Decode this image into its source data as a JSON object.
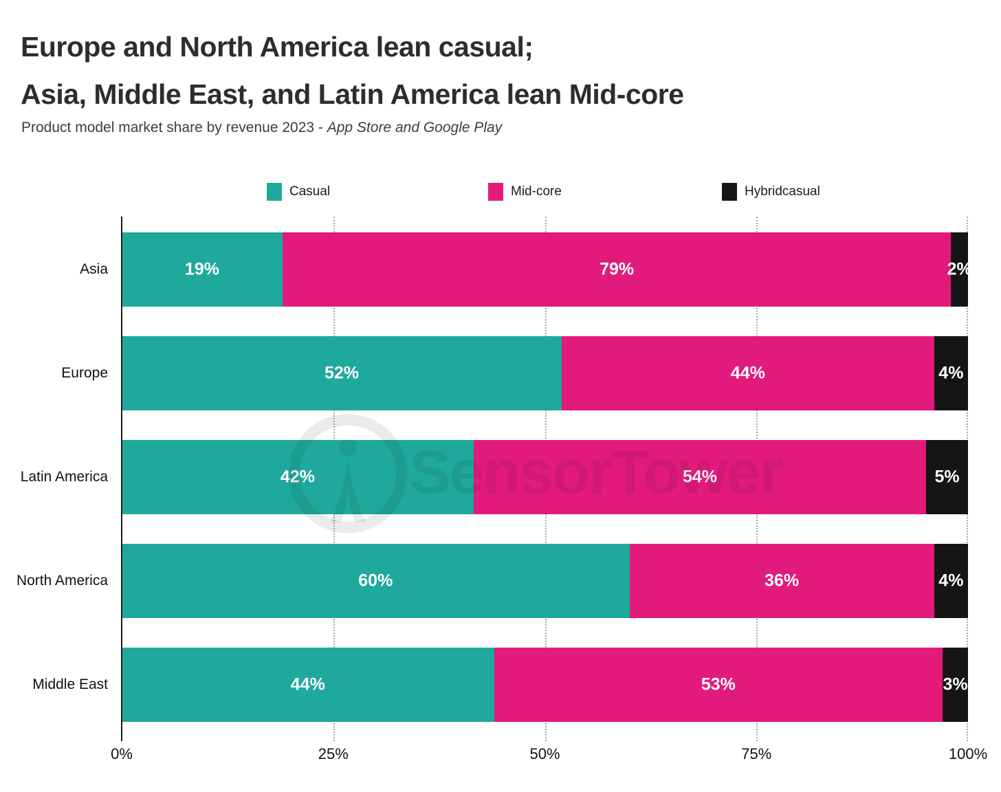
{
  "header": {
    "title_line1": "Europe and North America lean casual;",
    "title_line2": "Asia, Middle East, and Latin America lean Mid-core",
    "subtitle_prefix": "Product model market share by revenue 2023 - ",
    "subtitle_italic": "App Store and Google Play"
  },
  "watermark": {
    "brand": "SensorTower"
  },
  "chart_data": {
    "type": "bar",
    "orientation": "horizontal",
    "stacked": true,
    "title": "Europe and North America lean casual; Asia, Middle East, and Latin America lean Mid-core",
    "subtitle": "Product model market share by revenue 2023 - App Store and Google Play",
    "categories": [
      "Asia",
      "Europe",
      "Latin America",
      "North America",
      "Middle East"
    ],
    "series": [
      {
        "name": "Casual",
        "color": "#1EA99C",
        "values": [
          19,
          52,
          42,
          60,
          44
        ]
      },
      {
        "name": "Mid-core",
        "color": "#E21A7C",
        "values": [
          79,
          44,
          54,
          36,
          53
        ]
      },
      {
        "name": "Hybridcasual",
        "color": "#151515",
        "values": [
          2,
          4,
          5,
          4,
          3
        ]
      }
    ],
    "value_suffix": "%",
    "value_label_color": "#ffffff",
    "xlim": [
      0,
      100
    ],
    "x_tick_values": [
      0,
      25,
      50,
      75,
      100
    ],
    "x_tick_labels": [
      "0%",
      "25%",
      "50%",
      "75%",
      "100%"
    ],
    "grid": "dotted-vertical",
    "legend_position": "top",
    "axis_color": "#1a1a1a"
  }
}
